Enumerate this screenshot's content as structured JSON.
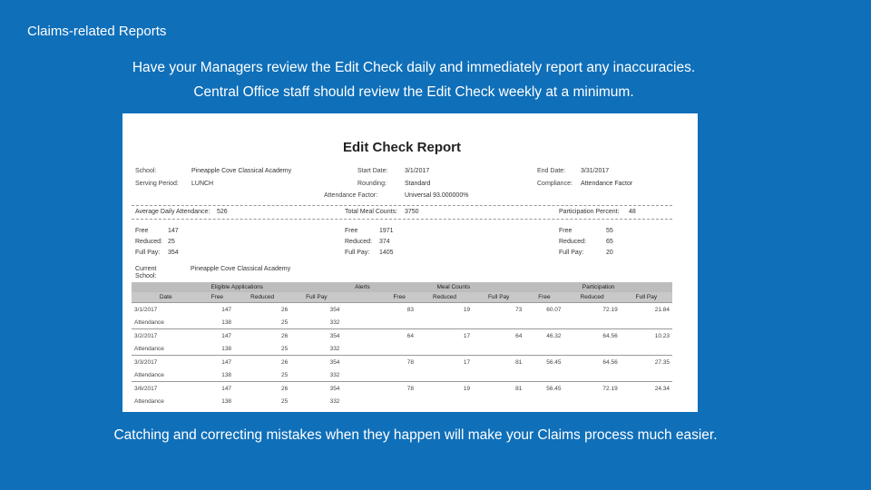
{
  "slide": {
    "title": "Claims-related Reports",
    "line1": "Have your Managers review the Edit Check daily and immediately report any inaccuracies.",
    "line2": "Central Office staff should review the Edit Check weekly at a minimum.",
    "line3": "Catching and correcting mistakes when they happen will make your Claims process much easier."
  },
  "report": {
    "title": "Edit Check Report",
    "header": {
      "school_label": "School:",
      "school": "Pineapple Cove Classical Academy",
      "serving_label": "Serving Period:",
      "serving": "LUNCH",
      "start_label": "Start Date:",
      "start": "3/1/2017",
      "rounding_label": "Rounding:",
      "rounding": "Standard",
      "attendance_factor_label": "Attendance Factor:",
      "attendance_factor": "Universal 93.000000%",
      "end_label": "End Date:",
      "end": "3/31/2017",
      "compliance_label": "Compliance:",
      "compliance": "Attendance Factor"
    },
    "summary": {
      "ada_label": "Average Daily Attendance:",
      "ada": "526",
      "tmc_label": "Total Meal Counts:",
      "tmc": "3750",
      "pp_label": "Participation Percent:",
      "pp": "48",
      "left": [
        {
          "label": "Free",
          "value": "147"
        },
        {
          "label": "Reduced:",
          "value": "25"
        },
        {
          "label": "Full Pay:",
          "value": "354"
        }
      ],
      "middle": [
        {
          "label": "Free",
          "value": "1971"
        },
        {
          "label": "Reduced:",
          "value": "374"
        },
        {
          "label": "Full Pay:",
          "value": "1405"
        }
      ],
      "right": [
        {
          "label": "Free",
          "value": "55"
        },
        {
          "label": "Reduced:",
          "value": "65"
        },
        {
          "label": "Full Pay:",
          "value": "20"
        }
      ]
    },
    "current_school_label": "Current School:",
    "current_school": "Pineapple Cove Classical Academy",
    "table": {
      "groups": [
        "Eligible Applications",
        "Alerts",
        "Meal Counts",
        "Participation"
      ],
      "columns": [
        "Date",
        "Free",
        "Reduced",
        "Full Pay",
        "",
        "Free",
        "Reduced",
        "Full Pay",
        "Free",
        "Reduced",
        "Full Pay"
      ],
      "rows": [
        {
          "date": "3/1/2017",
          "app": [
            "147",
            "26",
            "354"
          ],
          "alert": "",
          "meals": [
            "83",
            "19",
            "73"
          ],
          "part": [
            "60.07",
            "72.19",
            "21.84"
          ],
          "att_label": "Attendance",
          "att": [
            "138",
            "25",
            "332"
          ]
        },
        {
          "date": "3/2/2017",
          "app": [
            "147",
            "26",
            "354"
          ],
          "alert": "",
          "meals": [
            "64",
            "17",
            "64"
          ],
          "part": [
            "46.32",
            "64.56",
            "10.23"
          ],
          "att_label": "Attendance",
          "att": [
            "138",
            "25",
            "332"
          ]
        },
        {
          "date": "3/3/2017",
          "app": [
            "147",
            "26",
            "354"
          ],
          "alert": "",
          "meals": [
            "78",
            "17",
            "81"
          ],
          "part": [
            "56.45",
            "64.56",
            "27.35"
          ],
          "att_label": "Attendance",
          "att": [
            "138",
            "25",
            "332"
          ]
        },
        {
          "date": "3/6/2017",
          "app": [
            "147",
            "26",
            "354"
          ],
          "alert": "",
          "meals": [
            "78",
            "19",
            "81"
          ],
          "part": [
            "56.45",
            "72.19",
            "24.34"
          ],
          "att_label": "Attendance",
          "att": [
            "138",
            "25",
            "332"
          ]
        }
      ]
    }
  }
}
